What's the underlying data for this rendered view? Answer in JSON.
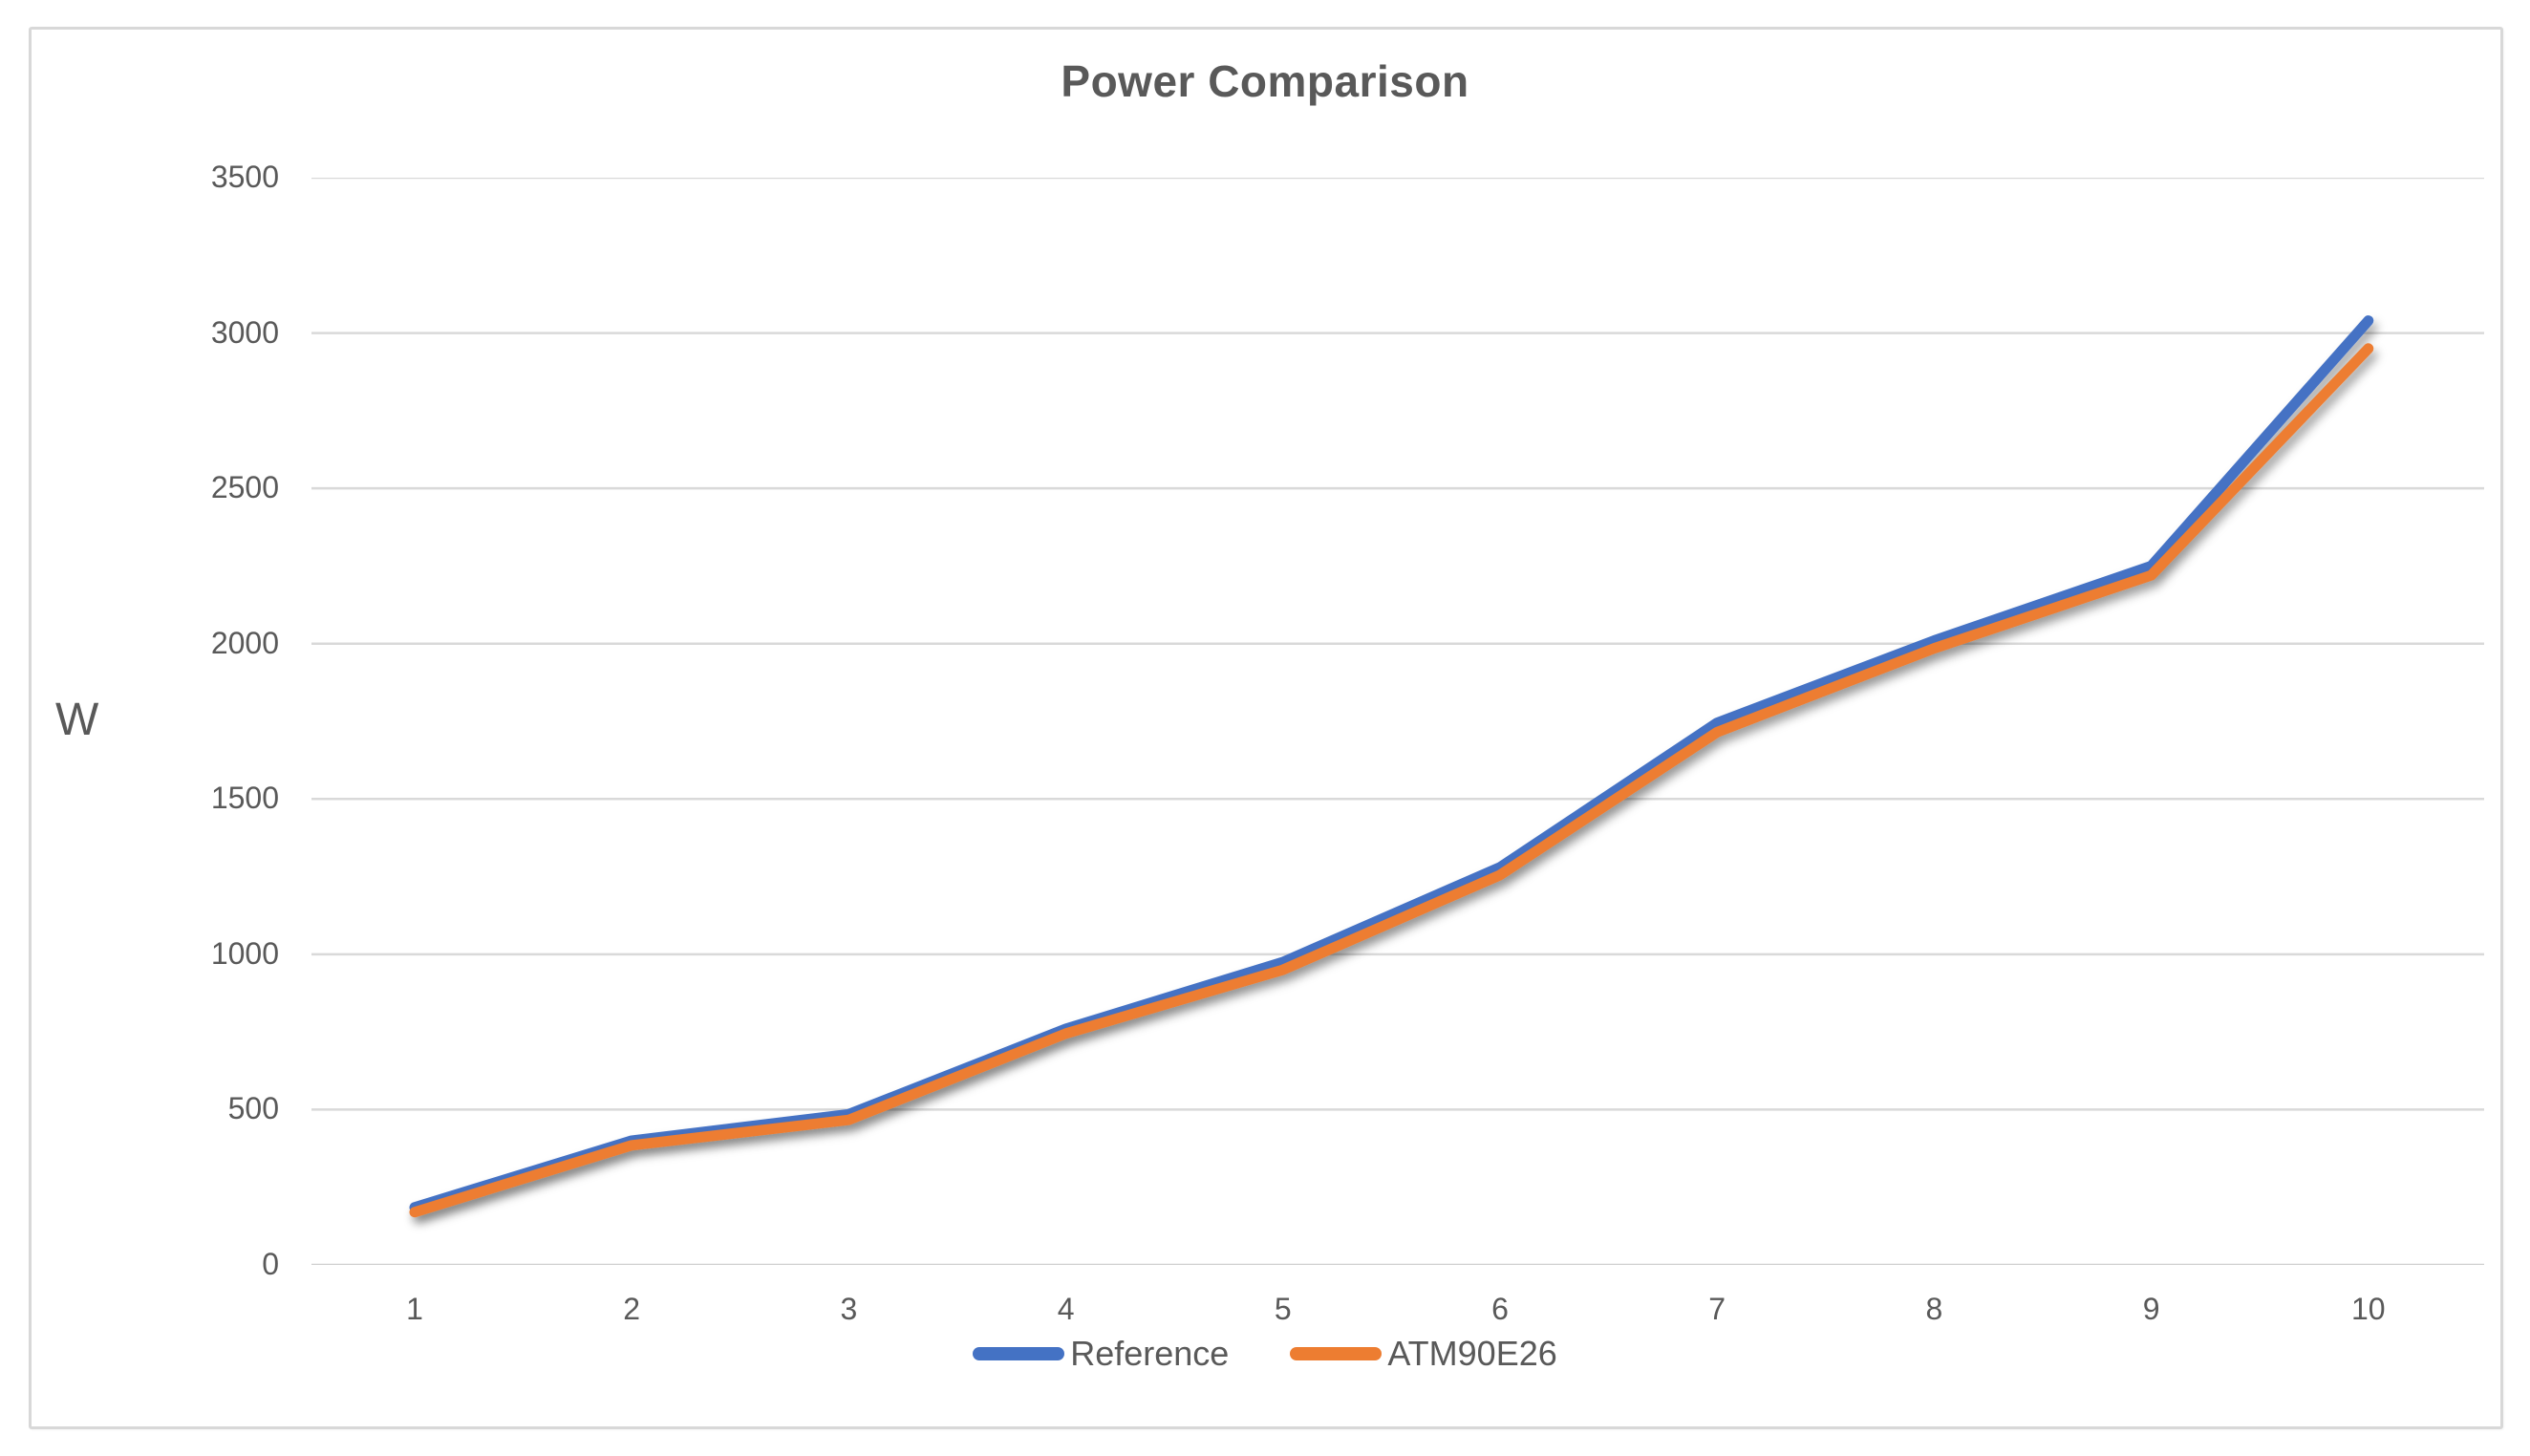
{
  "chart_data": {
    "type": "line",
    "title": "Power Comparison",
    "ylabel": "W",
    "xlabel": "",
    "x": [
      1,
      2,
      3,
      4,
      5,
      6,
      7,
      8,
      9,
      10
    ],
    "xticks": [
      "1",
      "2",
      "3",
      "4",
      "5",
      "6",
      "7",
      "8",
      "9",
      "10"
    ],
    "yticks": [
      3500,
      3000,
      2500,
      2000,
      1500,
      1000,
      500,
      0
    ],
    "ylim": [
      0,
      3500
    ],
    "grid": true,
    "series": [
      {
        "name": "Reference",
        "color": "#4472C4",
        "values": [
          185,
          400,
          485,
          760,
          975,
          1280,
          1745,
          2010,
          2250,
          3040
        ]
      },
      {
        "name": "ATM90E26",
        "color": "#ED7D31",
        "values": [
          170,
          385,
          467,
          745,
          950,
          1255,
          1715,
          1985,
          2220,
          2950
        ]
      }
    ],
    "legend_position": "bottom-center",
    "colors": {
      "text": "#595959",
      "gridline": "#D9D9D9",
      "axis_line": "#D0D0D0",
      "frame_border": "#D8D8D8",
      "background": "#FFFFFF"
    }
  }
}
